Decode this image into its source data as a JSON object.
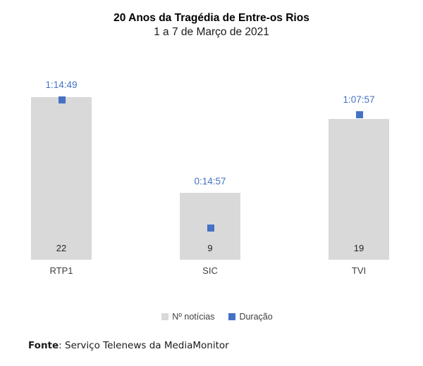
{
  "chart": {
    "title": "20 Anos da Tragédia de Entre-os Rios",
    "subtitle": "1 a 7 de Março de 2021"
  },
  "chart_data": {
    "type": "bar",
    "title": "20 Anos da Tragédia de Entre-os Rios",
    "subtitle": "1 a 7 de Março de 2021",
    "categories": [
      "RTP1",
      "SIC",
      "TVI"
    ],
    "series": [
      {
        "name": "Nº notícias",
        "type": "bar",
        "axis": "primary",
        "values": [
          22,
          9,
          19
        ],
        "data_labels": [
          "22",
          "9",
          "19"
        ],
        "color": "#d9d9d9"
      },
      {
        "name": "Duração",
        "type": "scatter-square",
        "axis": "secondary",
        "values_hms": [
          "1:14:49",
          "0:14:57",
          "1:07:57"
        ],
        "values_seconds": [
          4489,
          897,
          4077
        ],
        "color": "#4472c4"
      }
    ],
    "xlabel": "",
    "ylabel": "",
    "primary_ylim": [
      0,
      22
    ],
    "grid": false,
    "axes_visible": false,
    "legend_position": "bottom-center"
  },
  "legend": {
    "news_label": "Nº notícias",
    "duration_label": "Duração"
  },
  "footer": {
    "label": "Fonte",
    "text": ": Serviço Telenews da MediaMonitor"
  },
  "colors": {
    "bar": "#d9d9d9",
    "marker": "#4472c4",
    "duration_text": "#4472c4",
    "category_text": "#404040",
    "value_text": "#262626"
  }
}
